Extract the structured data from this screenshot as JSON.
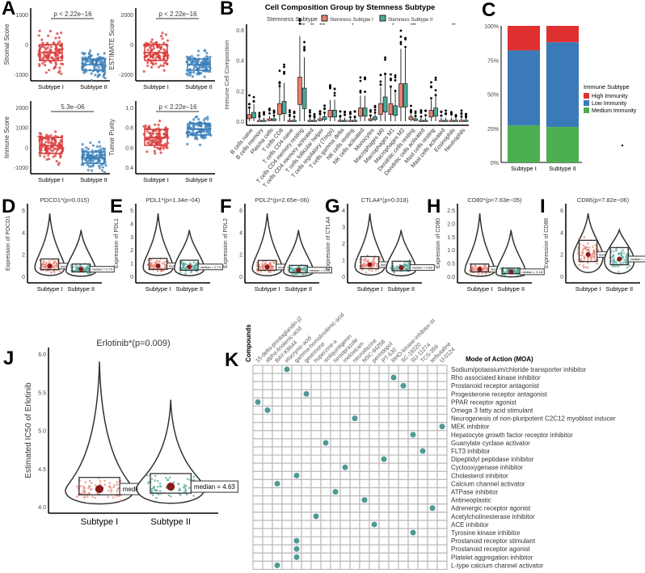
{
  "letters": [
    "A",
    "B",
    "C",
    "D",
    "E",
    "F",
    "G",
    "H",
    "I",
    "J",
    "K"
  ],
  "colors": {
    "red": "#d93a3a",
    "blue": "#3a7fb8",
    "salmon": "#e8806f",
    "teal": "#4fa89a",
    "high": "#e03030",
    "low": "#3a7ab8",
    "medium": "#4caf50",
    "dot": "#4e9a94"
  },
  "panel_a": [
    {
      "ylabel": "Stromal Score",
      "p": "p < 2.22e−16",
      "ticks": [
        "-1000",
        "0",
        "1000"
      ],
      "groups": [
        "Subtype I",
        "Subtype II"
      ]
    },
    {
      "ylabel": "ESTIMATE Score",
      "p": "p < 2.22e−16",
      "ticks": [
        "-2000",
        "0",
        "2000"
      ],
      "groups": [
        "Subtype I",
        "Subtype II"
      ]
    },
    {
      "ylabel": "Immune Score",
      "p": "5.3e−06",
      "ticks": [
        "-1000",
        "0",
        "1000",
        "2000"
      ],
      "groups": [
        "Subtype I",
        "Subtype II"
      ]
    },
    {
      "ylabel": "Tumor Purity",
      "p": "p < 2.22e−16",
      "ticks": [
        "0.4",
        "0.6",
        "0.8",
        "1.0"
      ],
      "groups": [
        "Subtype I",
        "Subtype II"
      ]
    }
  ],
  "panel_b": {
    "title": "Cell Composition Group by Stemness Subtype",
    "legend_title": "Stemness Subtype",
    "legend": [
      "Stemness Subtype I",
      "Stemness Subtype II"
    ],
    "ylabel": "Immune Cell Composition",
    "ticks": [
      "0.0",
      "0.2",
      "0.4",
      "0.6"
    ],
    "categories": [
      "B cells naive",
      "B cells memory",
      "Plasma cells",
      "T cells CD8",
      "T cells CD4 naive",
      "T cells CD4 memory resting",
      "T cells CD4 memory activated",
      "T cells follicular helper",
      "T cells regulatory (Tregs)",
      "T cells gamma delta",
      "NK cells resting",
      "NK cells activated",
      "Monocytes",
      "Macrophages M0",
      "Macrophages M1",
      "Macrophages M2",
      "Dendritic cells resting",
      "Dendritic cells activated",
      "Mast cells resting",
      "Mast cells activated",
      "Eosinophils",
      "Neutrophils"
    ],
    "medians1": [
      0.03,
      0.0,
      0.01,
      0.08,
      0.0,
      0.2,
      0.0,
      0.01,
      0.05,
      0.0,
      0.0,
      0.06,
      0.01,
      0.08,
      0.08,
      0.17,
      0.02,
      0.0,
      0.05,
      0.0,
      0.0,
      0.0
    ],
    "medians2": [
      0.04,
      0.0,
      0.01,
      0.09,
      0.0,
      0.15,
      0.0,
      0.02,
      0.05,
      0.0,
      0.0,
      0.06,
      0.02,
      0.11,
      0.07,
      0.17,
      0.01,
      0.0,
      0.06,
      0.0,
      0.0,
      0.0
    ],
    "significance": [
      "",
      "",
      "",
      "",
      "",
      "***",
      "**",
      "***",
      "",
      "",
      "*",
      "",
      "",
      "",
      "*",
      "",
      "***",
      "",
      "",
      "",
      "**",
      ""
    ]
  },
  "panel_c": {
    "legend_title": "Immune Subtype",
    "legend": [
      "High Immunity",
      "Low Immunity",
      "Medium Immunity"
    ],
    "ticks": [
      "0%",
      "25%",
      "50%",
      "75%",
      "100%"
    ],
    "groups": [
      "Subtype I",
      "Subtype II"
    ],
    "values": [
      [
        0.18,
        0.55,
        0.27
      ],
      [
        0.12,
        0.62,
        0.26
      ]
    ]
  },
  "violins": [
    {
      "title": "PDCD1*(p=0.015)",
      "ylabel": "Expression of PDCD1",
      "ticks": [
        "0",
        "2",
        "4",
        "6"
      ],
      "max": 6.5,
      "medians": [
        "1.01",
        "0.70"
      ],
      "med": [
        1.01,
        0.7
      ],
      "groups": [
        "Subtype I",
        "Subtype II"
      ]
    },
    {
      "title": "PDL1*(p=1.34e−04)",
      "ylabel": "Expression of PDL1",
      "ticks": [
        "0",
        "1",
        "2",
        "3",
        "4",
        "5"
      ],
      "max": 5.1,
      "medians": [
        "0.82",
        "0.73"
      ],
      "med": [
        0.82,
        0.73
      ],
      "groups": [
        "Subtype I",
        "Subtype II"
      ]
    },
    {
      "title": "PDL2*(p=2.65e−06)",
      "ylabel": "Expression of PDL2",
      "ticks": [
        "0",
        "2",
        "4",
        "6"
      ],
      "max": 7.2,
      "medians": [
        "1.02",
        "0.68"
      ],
      "med": [
        1.02,
        0.68
      ],
      "groups": [
        "Subtype I",
        "Subtype II"
      ]
    },
    {
      "title": "CTLA4*(p=0.018)",
      "ylabel": "Expression of CTLA4",
      "ticks": [
        "0",
        "1",
        "2",
        "3",
        "4"
      ],
      "max": 4.5,
      "medians": [
        "0.80",
        "0.60"
      ],
      "med": [
        0.8,
        0.6
      ],
      "groups": [
        "Subtype I",
        "Subtype II"
      ]
    },
    {
      "title": "CD80*(p=7.63e−05)",
      "ylabel": "Expression of CD80",
      "ticks": [
        "0.0",
        "0.5",
        "1.0",
        "1.5",
        "2.0",
        "2.5"
      ],
      "max": 2.6,
      "medians": [
        "0.28",
        "0.18"
      ],
      "med": [
        0.28,
        0.18
      ],
      "groups": [
        "Subtype I",
        "Subtype II"
      ]
    },
    {
      "title": "CD86(p=7.82e−06)",
      "ylabel": "Expression of CD86",
      "ticks": [
        "0",
        "2",
        "4",
        "6"
      ],
      "max": 6.1,
      "medians": [
        "2.02",
        "1.60"
      ],
      "med": [
        2.02,
        1.6
      ],
      "groups": [
        "Subtype I",
        "Subtype II"
      ]
    }
  ],
  "panel_j": {
    "title": "Erlotinib*(p=0.009)",
    "ylabel": "Estimated IC50 of Erlotinib",
    "ticks": [
      "4.0",
      "4.5",
      "5.0",
      "5.5",
      "6.0"
    ],
    "groups": [
      "Subtype I",
      "Subtype II"
    ],
    "median_labels": [
      "median = 4.53",
      "median = 4.63"
    ],
    "medians": [
      4.53,
      4.63
    ]
  },
  "panel_k": {
    "compounds_label": "Compounds",
    "moa_header": "Mode of Action (MOA)",
    "compounds": [
      "15-delta-prostaglandin-j2",
      "alpha-linolenic-acid",
      "BAY-K8644",
      "etacrynic-acid",
      "gamma-homolinolenic-acid",
      "gestrinone",
      "huperzine-a",
      "isoliquiritigenin",
      "lansoprazole",
      "meloxicam",
      "neurodazine",
      "NSC-94258",
      "perindopril",
      "PT-630",
      "RHO-kinase-inhibitor-III",
      "SC-19220",
      "SU-11274",
      "TCS-359",
      "terbutaline",
      "U-0124"
    ],
    "moa": [
      "Sodium/potassium/chloride transporter inhibitor",
      "Rho associated kinase inhibitor",
      "Prostanoid receptor antagonist",
      "Progesterone receptor antagonist",
      "PPAR receptor agonist",
      "Omega 3 fatty acid stimulant",
      "Neurogenesis of non-pluripotent C2C12 myoblast inducer",
      "MEK inhibitor",
      "Hepatocyte growth factor receptor inhibitor",
      "Guanylate cyclase activator",
      "FLT3 inhibitor",
      "Dipeptidyl peptidase inhibitor",
      "Cyclooxygenase inhibitor",
      "Cholesterol inhibitor",
      "Calcium channel activator",
      "ATPase inhibitor",
      "Antineoplastic",
      "Adrenergic receptor agonist",
      "Acetylcholinesterase inhibitor",
      "ACE inhibitor",
      "Tyrosine kinase inhibitor",
      "Prostanoid receptor stimulant",
      "Prostanoid receptor agonist",
      "Platelet aggregation inhibitor",
      "L-type calcium channel activator"
    ],
    "dot_compound_index": [
      3,
      14,
      15,
      5,
      0,
      1,
      10,
      19,
      16,
      7,
      17,
      13,
      9,
      4,
      2,
      8,
      11,
      18,
      6,
      12,
      16,
      4,
      4,
      4,
      2
    ]
  }
}
